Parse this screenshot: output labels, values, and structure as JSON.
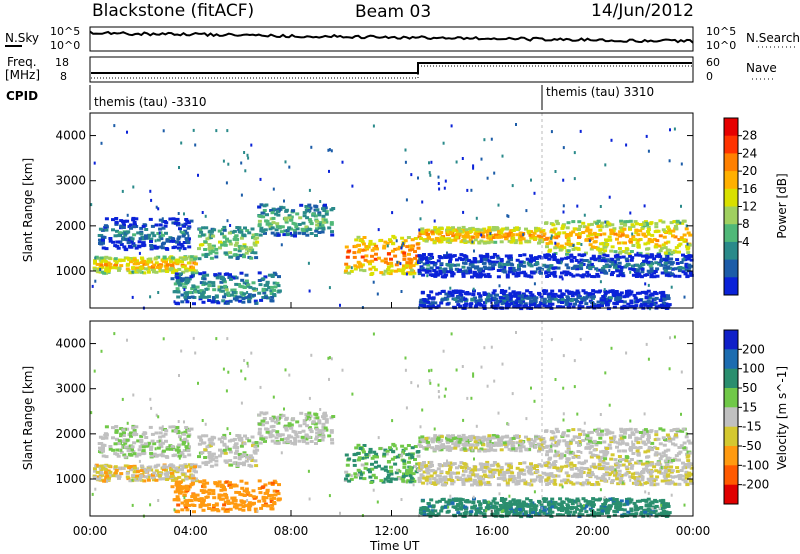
{
  "header": {
    "radar": "Blackstone (fitACF)",
    "beam": "Beam 03",
    "date": "14/Jun/2012"
  },
  "noise_panel": {
    "left_label": "N.Sky",
    "right_label": "N.Search",
    "tick_top": "10^5",
    "tick_bottom": "10^0"
  },
  "freq_panel": {
    "left_label_top": "Freq.",
    "left_label_bottom": "[MHz]",
    "left_ticks": [
      "18",
      "8"
    ],
    "right_label": "Nave",
    "right_ticks": [
      "60",
      "0"
    ]
  },
  "cpid_panel": {
    "label": "CPID",
    "segments": [
      {
        "text": "themis (tau) -3310"
      },
      {
        "text": "themis (tau) 3310"
      }
    ]
  },
  "axes": {
    "ylabel": "Slant Range [km]",
    "xlabel": "Time UT",
    "yticks": [
      "1000",
      "2000",
      "3000",
      "4000"
    ],
    "xticks": [
      "00:00",
      "04:00",
      "08:00",
      "12:00",
      "16:00",
      "20:00",
      "00:00"
    ]
  },
  "power_scale": {
    "label": "Power [dB]",
    "ticks": [
      "28",
      "24",
      "20",
      "16",
      "12",
      "8",
      "4"
    ],
    "colors": [
      "#e60000",
      "#ff3300",
      "#ff8000",
      "#ffb000",
      "#d9e000",
      "#a0d060",
      "#50b878",
      "#2a8a8a",
      "#1c5ca8",
      "#0a22d8"
    ]
  },
  "velocity_scale": {
    "label": "Velocity [m s^-1]",
    "ticks": [
      "200",
      "100",
      "50",
      "15",
      "-15",
      "-50",
      "-100",
      "-200"
    ],
    "colors": [
      "#1020c8",
      "#1c6cb0",
      "#2a8e6e",
      "#70c848",
      "#c0c0c0",
      "#d4c830",
      "#ff9a10",
      "#ff5a00",
      "#e00000"
    ]
  },
  "chart_data": {
    "type": "heatmap",
    "x_range_hours": [
      0,
      24
    ],
    "y_range_km": [
      180,
      4500
    ],
    "range_gate_count": 75,
    "cpid_change_hour": 18,
    "freq_step_hour": 13,
    "freq_mhz": [
      10.5,
      17
    ],
    "nave_approx": [
      30,
      55
    ],
    "echo_bands": [
      {
        "t0": 0.1,
        "t1": 4.2,
        "r0": 980,
        "r1": 1350,
        "power": 22,
        "vel": -20
      },
      {
        "t0": 0.3,
        "t1": 4.0,
        "r0": 1500,
        "r1": 2200,
        "power": 9,
        "vel": 10
      },
      {
        "t0": 4.2,
        "t1": 6.6,
        "r0": 1300,
        "r1": 2000,
        "power": 16,
        "vel": 0
      },
      {
        "t0": 6.6,
        "t1": 9.6,
        "r0": 1800,
        "r1": 2500,
        "power": 14,
        "vel": 5
      },
      {
        "t0": 3.2,
        "t1": 7.5,
        "r0": 300,
        "r1": 1000,
        "power": 12,
        "vel": -60
      },
      {
        "t0": 10.1,
        "t1": 13.0,
        "r0": 950,
        "r1": 1800,
        "power": 25,
        "vel": 30
      },
      {
        "t0": 13.0,
        "t1": 18.0,
        "r0": 1650,
        "r1": 2000,
        "power": 23,
        "vel": 0
      },
      {
        "t0": 18.0,
        "t1": 23.9,
        "r0": 1400,
        "r1": 2150,
        "power": 22,
        "vel": 0
      },
      {
        "t0": 13.0,
        "t1": 23.9,
        "r0": 900,
        "r1": 1400,
        "power": 8,
        "vel": -10
      },
      {
        "t0": 13.0,
        "t1": 23.0,
        "r0": 200,
        "r1": 600,
        "power": 7,
        "vel": 60
      }
    ]
  }
}
